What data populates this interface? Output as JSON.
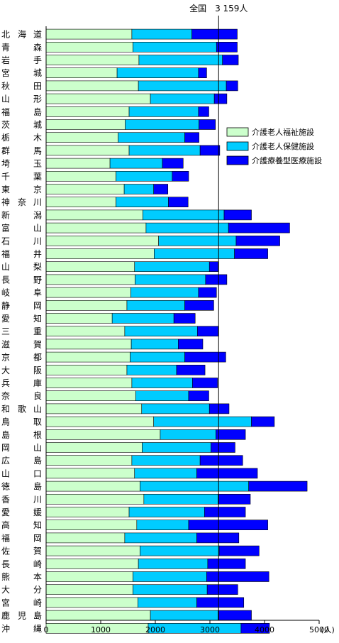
{
  "chart_data": {
    "type": "bar",
    "orientation": "horizontal",
    "stacked": true,
    "xlim": [
      0,
      5000
    ],
    "xticks": [
      0,
      1000,
      2000,
      3000,
      4000,
      5000
    ],
    "xtick_labels": [
      "0",
      "1000",
      "2000",
      "3000",
      "4000",
      "5000"
    ],
    "unit_label": "(人)",
    "reference_line": {
      "value": 3159,
      "label": "全国　3 159人"
    },
    "legend_position": "right",
    "colors": [
      "#ccffcc",
      "#00ccff",
      "#0000ff"
    ],
    "categories": [
      {
        "name": "北海道",
        "chars": [
          "北",
          "海",
          "道"
        ]
      },
      {
        "name": "青森",
        "chars": [
          "青",
          "森"
        ]
      },
      {
        "name": "岩手",
        "chars": [
          "岩",
          "手"
        ]
      },
      {
        "name": "宮城",
        "chars": [
          "宮",
          "城"
        ]
      },
      {
        "name": "秋田",
        "chars": [
          "秋",
          "田"
        ]
      },
      {
        "name": "山形",
        "chars": [
          "山",
          "形"
        ]
      },
      {
        "name": "福島",
        "chars": [
          "福",
          "島"
        ]
      },
      {
        "name": "茨城",
        "chars": [
          "茨",
          "城"
        ]
      },
      {
        "name": "栃木",
        "chars": [
          "栃",
          "木"
        ]
      },
      {
        "name": "群馬",
        "chars": [
          "群",
          "馬"
        ]
      },
      {
        "name": "埼玉",
        "chars": [
          "埼",
          "玉"
        ]
      },
      {
        "name": "千葉",
        "chars": [
          "千",
          "葉"
        ]
      },
      {
        "name": "東京",
        "chars": [
          "東",
          "京"
        ]
      },
      {
        "name": "神奈川",
        "chars": [
          "神",
          "奈",
          "川"
        ]
      },
      {
        "name": "新潟",
        "chars": [
          "新",
          "潟"
        ]
      },
      {
        "name": "富山",
        "chars": [
          "富",
          "山"
        ]
      },
      {
        "name": "石川",
        "chars": [
          "石",
          "川"
        ]
      },
      {
        "name": "福井",
        "chars": [
          "福",
          "井"
        ]
      },
      {
        "name": "山梨",
        "chars": [
          "山",
          "梨"
        ]
      },
      {
        "name": "長野",
        "chars": [
          "長",
          "野"
        ]
      },
      {
        "name": "岐阜",
        "chars": [
          "岐",
          "阜"
        ]
      },
      {
        "name": "静岡",
        "chars": [
          "静",
          "岡"
        ]
      },
      {
        "name": "愛知",
        "chars": [
          "愛",
          "知"
        ]
      },
      {
        "name": "三重",
        "chars": [
          "三",
          "重"
        ]
      },
      {
        "name": "滋賀",
        "chars": [
          "滋",
          "賀"
        ]
      },
      {
        "name": "京都",
        "chars": [
          "京",
          "都"
        ]
      },
      {
        "name": "大阪",
        "chars": [
          "大",
          "阪"
        ]
      },
      {
        "name": "兵庫",
        "chars": [
          "兵",
          "庫"
        ]
      },
      {
        "name": "奈良",
        "chars": [
          "奈",
          "良"
        ]
      },
      {
        "name": "和歌山",
        "chars": [
          "和",
          "歌",
          "山"
        ]
      },
      {
        "name": "鳥取",
        "chars": [
          "鳥",
          "取"
        ]
      },
      {
        "name": "島根",
        "chars": [
          "島",
          "根"
        ]
      },
      {
        "name": "岡山",
        "chars": [
          "岡",
          "山"
        ]
      },
      {
        "name": "広島",
        "chars": [
          "広",
          "島"
        ]
      },
      {
        "name": "山口",
        "chars": [
          "山",
          "口"
        ]
      },
      {
        "name": "徳島",
        "chars": [
          "徳",
          "島"
        ]
      },
      {
        "name": "香川",
        "chars": [
          "香",
          "川"
        ]
      },
      {
        "name": "愛媛",
        "chars": [
          "愛",
          "媛"
        ]
      },
      {
        "name": "高知",
        "chars": [
          "高",
          "知"
        ]
      },
      {
        "name": "福岡",
        "chars": [
          "福",
          "岡"
        ]
      },
      {
        "name": "佐賀",
        "chars": [
          "佐",
          "賀"
        ]
      },
      {
        "name": "長崎",
        "chars": [
          "長",
          "崎"
        ]
      },
      {
        "name": "熊本",
        "chars": [
          "熊",
          "本"
        ]
      },
      {
        "name": "大分",
        "chars": [
          "大",
          "分"
        ]
      },
      {
        "name": "宮崎",
        "chars": [
          "宮",
          "崎"
        ]
      },
      {
        "name": "鹿児島",
        "chars": [
          "鹿",
          "児",
          "島"
        ]
      },
      {
        "name": "沖縄",
        "chars": [
          "沖",
          "縄"
        ]
      }
    ],
    "series": [
      {
        "name": "介護老人福祉施設",
        "values": [
          1570,
          1590,
          1700,
          1300,
          1690,
          1910,
          1520,
          1450,
          1320,
          1520,
          1170,
          1280,
          1430,
          1280,
          1770,
          1830,
          2060,
          1980,
          1620,
          1630,
          1550,
          1480,
          1210,
          1440,
          1560,
          1540,
          1480,
          1570,
          1640,
          1750,
          1970,
          2090,
          1760,
          1570,
          1620,
          1720,
          1790,
          1520,
          1660,
          1440,
          1720,
          1690,
          1590,
          1590,
          1680,
          1910,
          1870
        ]
      },
      {
        "name": "介護老人保健施設",
        "values": [
          1100,
          1530,
          1530,
          1490,
          1610,
          1170,
          1270,
          1350,
          1220,
          1300,
          960,
          1030,
          540,
          960,
          1490,
          1510,
          1420,
          1470,
          1370,
          1290,
          1240,
          1060,
          1130,
          1330,
          860,
          1000,
          910,
          1110,
          970,
          1240,
          1790,
          1020,
          1260,
          1250,
          1140,
          1990,
          1360,
          1380,
          950,
          1320,
          1450,
          1270,
          1350,
          1360,
          1080,
          1240,
          1700
        ]
      },
      {
        "name": "介護療養型医療施設",
        "values": [
          830,
          380,
          290,
          150,
          210,
          230,
          190,
          300,
          260,
          360,
          380,
          300,
          260,
          360,
          500,
          1120,
          800,
          610,
          160,
          390,
          330,
          530,
          390,
          380,
          450,
          750,
          520,
          460,
          370,
          360,
          420,
          540,
          440,
          780,
          1110,
          1070,
          590,
          750,
          1450,
          770,
          730,
          690,
          1140,
          560,
          860,
          610,
          520
        ]
      }
    ]
  }
}
